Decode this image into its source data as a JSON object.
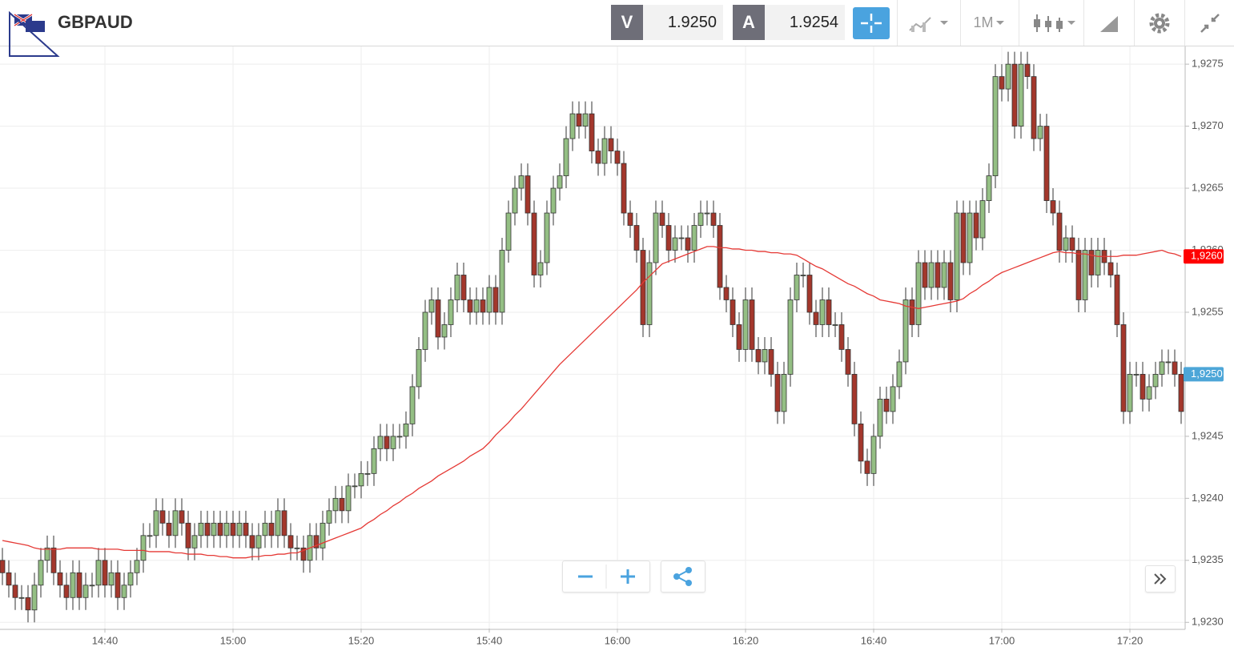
{
  "header": {
    "symbol": "GBPAUD",
    "bid_label": "V",
    "bid": "1.9250",
    "ask_label": "A",
    "ask": "1.9254",
    "timeframe": "1M"
  },
  "chart_data": {
    "type": "candlestick",
    "categories": [
      null,
      null,
      null,
      null,
      null,
      null,
      null,
      null,
      null,
      null,
      null,
      null,
      null,
      null,
      null,
      null,
      "14:40",
      null,
      null,
      null,
      null,
      null,
      null,
      null,
      null,
      null,
      null,
      null,
      null,
      null,
      null,
      null,
      null,
      null,
      null,
      null,
      "15:00",
      null,
      null,
      null,
      null,
      null,
      null,
      null,
      null,
      null,
      null,
      null,
      null,
      null,
      null,
      null,
      null,
      null,
      null,
      null,
      "15:20",
      null,
      null,
      null,
      null,
      null,
      null,
      null,
      null,
      null,
      null,
      null,
      null,
      null,
      null,
      null,
      null,
      null,
      null,
      null,
      "15:40",
      null,
      null,
      null,
      null,
      null,
      null,
      null,
      null,
      null,
      null,
      null,
      null,
      null,
      null,
      null,
      null,
      null,
      null,
      null,
      "16:00",
      null,
      null,
      null,
      null,
      null,
      null,
      null,
      null,
      null,
      null,
      null,
      null,
      null,
      null,
      null,
      null,
      null,
      null,
      null,
      "16:20",
      null,
      null,
      null,
      null,
      null,
      null,
      null,
      null,
      null,
      null,
      null,
      null,
      null,
      null,
      null,
      null,
      null,
      null,
      null,
      "16:40",
      null,
      null,
      null,
      null,
      null,
      null,
      null,
      null,
      null,
      null,
      null,
      null,
      null,
      null,
      null,
      null,
      null,
      null,
      null,
      "17:00",
      null,
      null,
      null,
      null,
      null,
      null,
      null,
      null,
      null,
      null,
      null,
      null,
      null,
      null,
      null,
      null,
      null,
      null,
      null,
      "17:20",
      null,
      null,
      null,
      null,
      null,
      null,
      null,
      null
    ],
    "open": [
      1.9235,
      1.9234,
      1.9233,
      1.9232,
      1.9232,
      1.9231,
      1.9233,
      1.9235,
      1.9236,
      1.9234,
      1.9233,
      1.9232,
      1.9234,
      1.9232,
      1.9233,
      1.9233,
      1.9235,
      1.9233,
      1.9234,
      1.9232,
      1.9233,
      1.9234,
      1.9235,
      1.9237,
      1.9237,
      1.9239,
      1.9238,
      1.9237,
      1.9239,
      1.9238,
      1.9236,
      1.9237,
      1.9238,
      1.9237,
      1.9238,
      1.9237,
      1.9238,
      1.9237,
      1.9238,
      1.9237,
      1.9236,
      1.9237,
      1.9238,
      1.9237,
      1.9239,
      1.9237,
      1.9236,
      1.9236,
      1.9235,
      1.9237,
      1.9236,
      1.9238,
      1.9239,
      1.924,
      1.9239,
      1.9241,
      1.9241,
      1.9242,
      1.9242,
      1.9244,
      1.9245,
      1.9244,
      1.9245,
      1.9245,
      1.9246,
      1.9249,
      1.9252,
      1.9255,
      1.9256,
      1.9253,
      1.9254,
      1.9256,
      1.9258,
      1.9256,
      1.9255,
      1.9256,
      1.9255,
      1.9257,
      1.9255,
      1.926,
      1.9263,
      1.9265,
      1.9266,
      1.9263,
      1.9258,
      1.9259,
      1.9263,
      1.9265,
      1.9266,
      1.9269,
      1.9271,
      1.927,
      1.9271,
      1.9268,
      1.9267,
      1.9269,
      1.9268,
      1.9267,
      1.9263,
      1.9262,
      1.926,
      1.9254,
      1.9259,
      1.9263,
      1.9262,
      1.926,
      1.9261,
      1.9261,
      1.926,
      1.9262,
      1.9263,
      1.9263,
      1.9262,
      1.9257,
      1.9256,
      1.9254,
      1.9252,
      1.9256,
      1.9252,
      1.9251,
      1.9252,
      1.925,
      1.9247,
      1.925,
      1.9256,
      1.9258,
      1.9258,
      1.9255,
      1.9254,
      1.9256,
      1.9254,
      1.9254,
      1.9252,
      1.925,
      1.9246,
      1.9243,
      1.9242,
      1.9245,
      1.9248,
      1.9247,
      1.9249,
      1.9251,
      1.9256,
      1.9254,
      1.9259,
      1.9257,
      1.9259,
      1.9257,
      1.9259,
      1.9256,
      1.9263,
      1.9259,
      1.9263,
      1.9261,
      1.9264,
      1.9266,
      1.9274,
      1.9273,
      1.9275,
      1.927,
      1.9275,
      1.9274,
      1.9269,
      1.927,
      1.9264,
      1.9263,
      1.926,
      1.9261,
      1.926,
      1.9256,
      1.926,
      1.9258,
      1.926,
      1.9259,
      1.9258,
      1.9254,
      1.9247,
      1.925,
      1.925,
      1.9248,
      1.9249,
      1.925,
      1.9251,
      1.9251,
      1.925
    ],
    "high": [
      1.9236,
      1.9235,
      1.9234,
      1.9233,
      1.9233,
      1.9234,
      1.9236,
      1.9237,
      1.9237,
      1.9235,
      1.9234,
      1.9235,
      1.9235,
      1.9234,
      1.9234,
      1.9236,
      1.9236,
      1.9235,
      1.9235,
      1.9234,
      1.9235,
      1.9236,
      1.9238,
      1.9238,
      1.924,
      1.924,
      1.9239,
      1.924,
      1.924,
      1.9239,
      1.9238,
      1.9239,
      1.9239,
      1.9239,
      1.9239,
      1.9239,
      1.9239,
      1.9239,
      1.9239,
      1.9238,
      1.9238,
      1.9239,
      1.9239,
      1.924,
      1.924,
      1.9238,
      1.9237,
      1.9237,
      1.9238,
      1.9238,
      1.9239,
      1.924,
      1.9241,
      1.9241,
      1.9242,
      1.9242,
      1.9243,
      1.9243,
      1.9245,
      1.9246,
      1.9246,
      1.9246,
      1.9246,
      1.9247,
      1.925,
      1.9253,
      1.9256,
      1.9257,
      1.9257,
      1.9255,
      1.9257,
      1.9259,
      1.9259,
      1.9257,
      1.9257,
      1.9257,
      1.9258,
      1.9258,
      1.9261,
      1.9264,
      1.9266,
      1.9267,
      1.9267,
      1.9264,
      1.926,
      1.9264,
      1.9266,
      1.9267,
      1.927,
      1.9272,
      1.9272,
      1.9272,
      1.9272,
      1.9269,
      1.927,
      1.927,
      1.9269,
      1.9268,
      1.9264,
      1.9263,
      1.9261,
      1.926,
      1.9264,
      1.9264,
      1.9263,
      1.9262,
      1.9262,
      1.9262,
      1.9263,
      1.9264,
      1.9264,
      1.9264,
      1.9263,
      1.9258,
      1.9257,
      1.9255,
      1.9257,
      1.9257,
      1.9253,
      1.9253,
      1.9253,
      1.9251,
      1.9251,
      1.9257,
      1.9259,
      1.9259,
      1.9259,
      1.9256,
      1.9257,
      1.9257,
      1.9255,
      1.9255,
      1.9253,
      1.9251,
      1.9247,
      1.9244,
      1.9246,
      1.9249,
      1.9249,
      1.925,
      1.9252,
      1.9257,
      1.9257,
      1.926,
      1.926,
      1.926,
      1.926,
      1.926,
      1.926,
      1.9264,
      1.9264,
      1.9264,
      1.9264,
      1.9265,
      1.9267,
      1.9275,
      1.9275,
      1.9276,
      1.9276,
      1.9276,
      1.9276,
      1.9275,
      1.9271,
      1.9271,
      1.9265,
      1.9264,
      1.9262,
      1.9262,
      1.9261,
      1.9261,
      1.9261,
      1.9261,
      1.9261,
      1.926,
      1.9259,
      1.9255,
      1.9251,
      1.9251,
      1.9251,
      1.925,
      1.9251,
      1.9252,
      1.9252,
      1.9252,
      1.9251
    ],
    "low": [
      1.9233,
      1.9232,
      1.9231,
      1.9231,
      1.923,
      1.923,
      1.9232,
      1.9234,
      1.9233,
      1.9232,
      1.9231,
      1.9231,
      1.9231,
      1.9231,
      1.9232,
      1.9232,
      1.9232,
      1.9232,
      1.9231,
      1.9231,
      1.9232,
      1.9233,
      1.9234,
      1.9236,
      1.9236,
      1.9237,
      1.9236,
      1.9236,
      1.9237,
      1.9235,
      1.9235,
      1.9236,
      1.9236,
      1.9236,
      1.9236,
      1.9236,
      1.9236,
      1.9236,
      1.9236,
      1.9235,
      1.9235,
      1.9236,
      1.9236,
      1.9236,
      1.9236,
      1.9235,
      1.9235,
      1.9234,
      1.9234,
      1.9235,
      1.9235,
      1.9237,
      1.9238,
      1.9238,
      1.9238,
      1.924,
      1.924,
      1.9241,
      1.9241,
      1.9243,
      1.9243,
      1.9243,
      1.9244,
      1.9244,
      1.9245,
      1.9248,
      1.9251,
      1.9254,
      1.9252,
      1.9252,
      1.9253,
      1.9255,
      1.9255,
      1.9254,
      1.9254,
      1.9254,
      1.9254,
      1.9254,
      1.9254,
      1.9259,
      1.9262,
      1.9264,
      1.9262,
      1.9257,
      1.9257,
      1.9258,
      1.9262,
      1.9264,
      1.9265,
      1.9268,
      1.9269,
      1.9269,
      1.9267,
      1.9266,
      1.9266,
      1.9267,
      1.9266,
      1.9262,
      1.9261,
      1.9259,
      1.9253,
      1.9253,
      1.9258,
      1.9261,
      1.9259,
      1.9259,
      1.926,
      1.9259,
      1.9259,
      1.9261,
      1.9262,
      1.9261,
      1.9256,
      1.9255,
      1.9253,
      1.9251,
      1.9251,
      1.9251,
      1.925,
      1.925,
      1.9249,
      1.9246,
      1.9246,
      1.9249,
      1.9255,
      1.9257,
      1.9254,
      1.9253,
      1.9253,
      1.9253,
      1.9253,
      1.9251,
      1.9249,
      1.9245,
      1.9242,
      1.9241,
      1.9241,
      1.9244,
      1.9246,
      1.9246,
      1.9248,
      1.925,
      1.9253,
      1.9253,
      1.9256,
      1.9256,
      1.9256,
      1.9256,
      1.9255,
      1.9255,
      1.9258,
      1.9258,
      1.926,
      1.926,
      1.9263,
      1.9265,
      1.9272,
      1.9272,
      1.9269,
      1.9269,
      1.9273,
      1.9268,
      1.9268,
      1.9263,
      1.9262,
      1.9259,
      1.9259,
      1.9259,
      1.9255,
      1.9255,
      1.9257,
      1.9257,
      1.9258,
      1.9257,
      1.9253,
      1.9246,
      1.9246,
      1.9249,
      1.9247,
      1.9247,
      1.9248,
      1.9249,
      1.925,
      1.9249,
      1.9246
    ],
    "close": [
      1.9234,
      1.9233,
      1.9232,
      1.9232,
      1.9231,
      1.9233,
      1.9235,
      1.9236,
      1.9234,
      1.9233,
      1.9232,
      1.9234,
      1.9232,
      1.9233,
      1.9233,
      1.9235,
      1.9233,
      1.9234,
      1.9232,
      1.9233,
      1.9234,
      1.9235,
      1.9237,
      1.9237,
      1.9239,
      1.9238,
      1.9237,
      1.9239,
      1.9238,
      1.9236,
      1.9237,
      1.9238,
      1.9237,
      1.9238,
      1.9237,
      1.9238,
      1.9237,
      1.9238,
      1.9237,
      1.9236,
      1.9237,
      1.9238,
      1.9237,
      1.9239,
      1.9237,
      1.9236,
      1.9236,
      1.9235,
      1.9237,
      1.9236,
      1.9238,
      1.9239,
      1.924,
      1.9239,
      1.9241,
      1.9241,
      1.9242,
      1.9242,
      1.9244,
      1.9245,
      1.9244,
      1.9245,
      1.9245,
      1.9246,
      1.9249,
      1.9252,
      1.9255,
      1.9256,
      1.9253,
      1.9254,
      1.9256,
      1.9258,
      1.9256,
      1.9255,
      1.9256,
      1.9255,
      1.9257,
      1.9255,
      1.926,
      1.9263,
      1.9265,
      1.9266,
      1.9263,
      1.9258,
      1.9259,
      1.9263,
      1.9265,
      1.9266,
      1.9269,
      1.9271,
      1.927,
      1.9271,
      1.9268,
      1.9267,
      1.9269,
      1.9268,
      1.9267,
      1.9263,
      1.9262,
      1.926,
      1.9254,
      1.9259,
      1.9263,
      1.9262,
      1.926,
      1.9261,
      1.9261,
      1.926,
      1.9262,
      1.9263,
      1.9263,
      1.9262,
      1.9257,
      1.9256,
      1.9254,
      1.9252,
      1.9256,
      1.9252,
      1.9251,
      1.9252,
      1.925,
      1.9247,
      1.925,
      1.9256,
      1.9258,
      1.9258,
      1.9255,
      1.9254,
      1.9256,
      1.9254,
      1.9254,
      1.9252,
      1.925,
      1.9246,
      1.9243,
      1.9242,
      1.9245,
      1.9248,
      1.9247,
      1.9249,
      1.9251,
      1.9256,
      1.9254,
      1.9259,
      1.9257,
      1.9259,
      1.9257,
      1.9259,
      1.9256,
      1.9263,
      1.9259,
      1.9263,
      1.9261,
      1.9264,
      1.9266,
      1.9274,
      1.9273,
      1.9275,
      1.927,
      1.9275,
      1.9274,
      1.9269,
      1.927,
      1.9264,
      1.9263,
      1.926,
      1.9261,
      1.926,
      1.9256,
      1.926,
      1.9258,
      1.926,
      1.9259,
      1.9258,
      1.9254,
      1.9247,
      1.925,
      1.925,
      1.9248,
      1.9249,
      1.925,
      1.9251,
      1.9251,
      1.925,
      1.9247
    ],
    "ma": {
      "color": "#e53935",
      "values": [
        1.92366,
        1.92365,
        1.92364,
        1.92363,
        1.92362,
        1.9236,
        1.92359,
        1.92359,
        1.92359,
        1.92359,
        1.9236,
        1.9236,
        1.9236,
        1.9236,
        1.9236,
        1.92359,
        1.92359,
        1.92359,
        1.92359,
        1.92358,
        1.92358,
        1.92358,
        1.92358,
        1.92357,
        1.92357,
        1.92357,
        1.92357,
        1.92356,
        1.92356,
        1.92355,
        1.92355,
        1.92355,
        1.92354,
        1.92354,
        1.92353,
        1.92353,
        1.92352,
        1.92352,
        1.92352,
        1.92353,
        1.92353,
        1.92354,
        1.92354,
        1.92355,
        1.92355,
        1.92356,
        1.92356,
        1.92358,
        1.9236,
        1.92362,
        1.92364,
        1.92366,
        1.92368,
        1.9237,
        1.92372,
        1.92374,
        1.92376,
        1.9238,
        1.92383,
        1.92387,
        1.9239,
        1.92394,
        1.92397,
        1.92401,
        1.92404,
        1.92408,
        1.92411,
        1.92414,
        1.92418,
        1.92421,
        1.92424,
        1.92427,
        1.9243,
        1.92434,
        1.92437,
        1.9244,
        1.92445,
        1.92451,
        1.92456,
        1.92461,
        1.92467,
        1.92472,
        1.92478,
        1.92484,
        1.9249,
        1.92496,
        1.92502,
        1.92508,
        1.92513,
        1.92518,
        1.92523,
        1.92528,
        1.92533,
        1.92538,
        1.92543,
        1.92548,
        1.92553,
        1.92558,
        1.92563,
        1.92568,
        1.92574,
        1.92579,
        1.92584,
        1.92589,
        1.92591,
        1.92593,
        1.92595,
        1.92597,
        1.92599,
        1.92601,
        1.92603,
        1.92603,
        1.92602,
        1.92602,
        1.92601,
        1.92601,
        1.926,
        1.926,
        1.92599,
        1.92599,
        1.92598,
        1.92598,
        1.92597,
        1.92597,
        1.92596,
        1.92593,
        1.9259,
        1.92587,
        1.92585,
        1.92582,
        1.92579,
        1.92576,
        1.92573,
        1.92571,
        1.92568,
        1.92565,
        1.92563,
        1.9256,
        1.92559,
        1.92558,
        1.92557,
        1.92555,
        1.92554,
        1.92553,
        1.92554,
        1.92555,
        1.92556,
        1.92557,
        1.92558,
        1.92559,
        1.92561,
        1.92565,
        1.92568,
        1.92572,
        1.92575,
        1.92579,
        1.92582,
        1.92584,
        1.92586,
        1.92588,
        1.9259,
        1.92592,
        1.92594,
        1.92596,
        1.92598,
        1.92599,
        1.92598,
        1.92598,
        1.92597,
        1.92597,
        1.92596,
        1.92595,
        1.92595,
        1.92595,
        1.92595,
        1.92596,
        1.92596,
        1.92596,
        1.92597,
        1.92598,
        1.92599,
        1.926,
        1.92598,
        1.92597,
        1.92595
      ]
    },
    "up_color": "#94bf84",
    "down_color": "#a3372c",
    "ylim": [
      1.92295,
      1.92763
    ],
    "yticks": [
      {
        "value": 1.923,
        "label": "1,9230"
      },
      {
        "value": 1.9235,
        "label": "1,9235"
      },
      {
        "value": 1.924,
        "label": "1,9240"
      },
      {
        "value": 1.9245,
        "label": "1,9245"
      },
      {
        "value": 1.925,
        "label": "1,9250"
      },
      {
        "value": 1.9255,
        "label": "1,9255"
      },
      {
        "value": 1.926,
        "label": "1,9260"
      },
      {
        "value": 1.9265,
        "label": "1,9265"
      },
      {
        "value": 1.927,
        "label": "1,9270"
      },
      {
        "value": 1.9275,
        "label": "1,9275"
      }
    ],
    "price_markers": [
      {
        "value": 1.92595,
        "label": "1,9260",
        "color": "#ff0000"
      },
      {
        "value": 1.925,
        "label": "1,9250",
        "color": "#4da6d8"
      }
    ],
    "grid": true
  }
}
